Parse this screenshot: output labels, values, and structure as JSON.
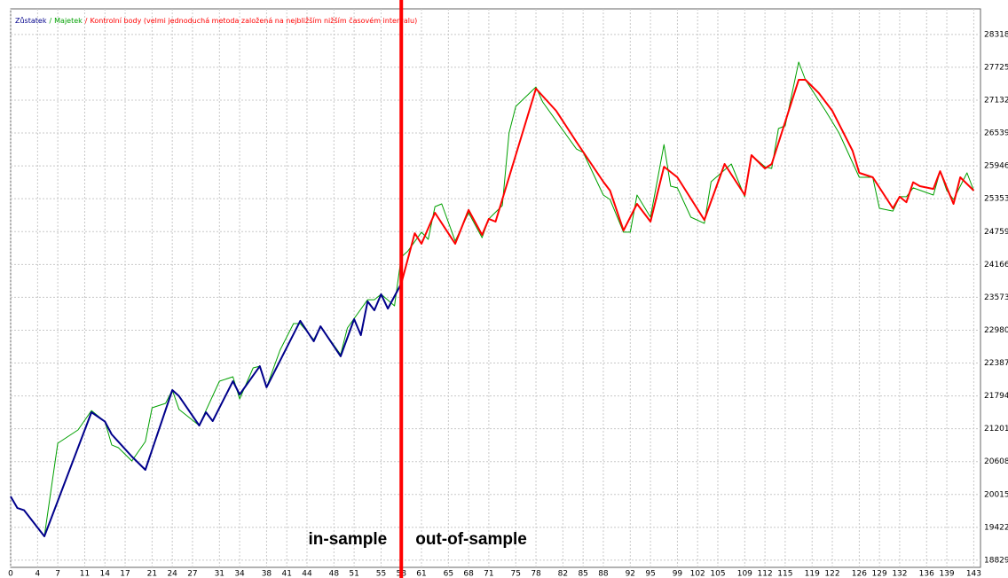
{
  "chart_data": {
    "type": "line",
    "legend_separator": "/",
    "series": [
      {
        "name": "Majetek",
        "color": "#00a000",
        "width": 1,
        "x": [
          0,
          1,
          2,
          5,
          7,
          10,
          12,
          14,
          15,
          16,
          18,
          20,
          21,
          23,
          24,
          25,
          28,
          29,
          31,
          33,
          34,
          36,
          37,
          38,
          40,
          42,
          43,
          45,
          46,
          49,
          50,
          53,
          54,
          55,
          57,
          58,
          59,
          61,
          62,
          63,
          64,
          66,
          68,
          70,
          71,
          73,
          74,
          75,
          78,
          79,
          84,
          85,
          88,
          89,
          91,
          92,
          93,
          95,
          97,
          98,
          99,
          101,
          103,
          104,
          107,
          109,
          110,
          112,
          113,
          114,
          115,
          117,
          118,
          121,
          123,
          126,
          128,
          129,
          131,
          132,
          133,
          134,
          137,
          138,
          139,
          140,
          142,
          143
        ],
        "values": [
          1998000,
          1977000,
          1973000,
          1926000,
          2094000,
          2118000,
          2153000,
          2133000,
          2091000,
          2086000,
          2062000,
          2097000,
          2158000,
          2166000,
          2190000,
          2155000,
          2126000,
          2153000,
          2206000,
          2214000,
          2174000,
          2230000,
          2233000,
          2195000,
          2262000,
          2310000,
          2310000,
          2281000,
          2305000,
          2254000,
          2302000,
          2353000,
          2353000,
          2363000,
          2342000,
          2430000,
          2441000,
          2475000,
          2462000,
          2521000,
          2526000,
          2459000,
          2510000,
          2465000,
          2499000,
          2523000,
          2654000,
          2702000,
          2737000,
          2710000,
          2625000,
          2619000,
          2542000,
          2534000,
          2475000,
          2475000,
          2542000,
          2502000,
          2633000,
          2558000,
          2555000,
          2502000,
          2491000,
          2566000,
          2598000,
          2539000,
          2614000,
          2593000,
          2590000,
          2662000,
          2667000,
          2782000,
          2750000,
          2694000,
          2654000,
          2574000,
          2574000,
          2518000,
          2513000,
          2539000,
          2539000,
          2555000,
          2542000,
          2585000,
          2550000,
          2534000,
          2582000,
          2550000
        ]
      },
      {
        "name": "Zůstatek",
        "color": "#00008b",
        "width": 2,
        "x": [
          0,
          1,
          2,
          5,
          12,
          14,
          15,
          18,
          20,
          24,
          25,
          28,
          29,
          30,
          33,
          34,
          37,
          38,
          43,
          45,
          46,
          49,
          51,
          52,
          53,
          54,
          55,
          56,
          58
        ],
        "values": [
          1998000,
          1977000,
          1973000,
          1926000,
          2150000,
          2133000,
          2110000,
          2070000,
          2046000,
          2190000,
          2179000,
          2126000,
          2150000,
          2134000,
          2206000,
          2182000,
          2233000,
          2195000,
          2315000,
          2278000,
          2305000,
          2251000,
          2318000,
          2289000,
          2350000,
          2334000,
          2363000,
          2337000,
          2382000
        ]
      },
      {
        "name": "Kontrolní body (velmi jednoduchá metoda založená na nejbližším nižším časovém intervalu)",
        "color": "#ff0000",
        "width": 2,
        "x": [
          58,
          60,
          61,
          63,
          66,
          68,
          70,
          71,
          72,
          78,
          81,
          84,
          88,
          89,
          91,
          93,
          95,
          97,
          99,
          103,
          106,
          109,
          110,
          112,
          113,
          117,
          118,
          120,
          122,
          125,
          126,
          128,
          131,
          132,
          133,
          134,
          135,
          137,
          138,
          140,
          141,
          143
        ],
        "values": [
          2382000,
          2473000,
          2454000,
          2510000,
          2454000,
          2515000,
          2470000,
          2499000,
          2494000,
          2734000,
          2694000,
          2638000,
          2566000,
          2550000,
          2478000,
          2526000,
          2494000,
          2593000,
          2574000,
          2497000,
          2598000,
          2542000,
          2614000,
          2590000,
          2598000,
          2750000,
          2750000,
          2726000,
          2694000,
          2622000,
          2582000,
          2574000,
          2518000,
          2539000,
          2529000,
          2565000,
          2558000,
          2553000,
          2585000,
          2526000,
          2574000,
          2550000
        ]
      }
    ],
    "xlim": [
      0,
      144
    ],
    "xticks": [
      0,
      4,
      7,
      11,
      14,
      17,
      21,
      24,
      27,
      31,
      34,
      38,
      41,
      44,
      48,
      51,
      55,
      58,
      61,
      65,
      68,
      71,
      75,
      78,
      82,
      85,
      88,
      92,
      95,
      99,
      102,
      105,
      109,
      112,
      115,
      119,
      122,
      126,
      129,
      132,
      136,
      139,
      143
    ],
    "ylim": [
      1870000,
      2878000
    ],
    "yticks": [
      1882901,
      1942210,
      2001520,
      2060829,
      2120139,
      2179448,
      2238758,
      2298067,
      2357376,
      2416686,
      2475995,
      2535305,
      2594614,
      2653924,
      2713233,
      2772543,
      2831852
    ],
    "grid": true,
    "divider": {
      "x": 58,
      "color": "#ff0000"
    },
    "annotations": [
      {
        "text": "in-sample",
        "color": "#00008b",
        "side": "left"
      },
      {
        "text": "out-of-sample",
        "color": "#ff0000",
        "side": "right"
      }
    ]
  }
}
